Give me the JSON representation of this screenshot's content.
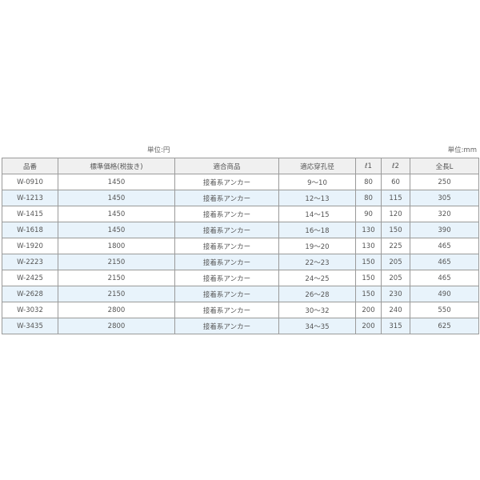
{
  "units": {
    "price": "単位:円",
    "length": "単位:mm"
  },
  "table": {
    "headers": [
      "品番",
      "標準価格(税抜き)",
      "適合商品",
      "適応穿孔径",
      "ℓ1",
      "ℓ2",
      "全長L"
    ],
    "rows": [
      [
        "W-0910",
        "1450",
        "接着系アンカー",
        "9～10",
        "80",
        "60",
        "250"
      ],
      [
        "W-1213",
        "1450",
        "接着系アンカー",
        "12～13",
        "80",
        "115",
        "305"
      ],
      [
        "W-1415",
        "1450",
        "接着系アンカー",
        "14～15",
        "90",
        "120",
        "320"
      ],
      [
        "W-1618",
        "1450",
        "接着系アンカー",
        "16～18",
        "130",
        "150",
        "390"
      ],
      [
        "W-1920",
        "1800",
        "接着系アンカー",
        "19～20",
        "130",
        "225",
        "465"
      ],
      [
        "W-2223",
        "2150",
        "接着系アンカー",
        "22～23",
        "150",
        "205",
        "465"
      ],
      [
        "W-2425",
        "2150",
        "接着系アンカー",
        "24～25",
        "150",
        "205",
        "465"
      ],
      [
        "W-2628",
        "2150",
        "接着系アンカー",
        "26～28",
        "150",
        "230",
        "490"
      ],
      [
        "W-3032",
        "2800",
        "接着系アンカー",
        "30～32",
        "200",
        "240",
        "550"
      ],
      [
        "W-3435",
        "2800",
        "接着系アンカー",
        "34～35",
        "200",
        "315",
        "625"
      ]
    ]
  },
  "colors": {
    "header_bg": "#f0f0f0",
    "alt_row_bg": "#e8f3fb",
    "border": "#9a9a9a"
  }
}
